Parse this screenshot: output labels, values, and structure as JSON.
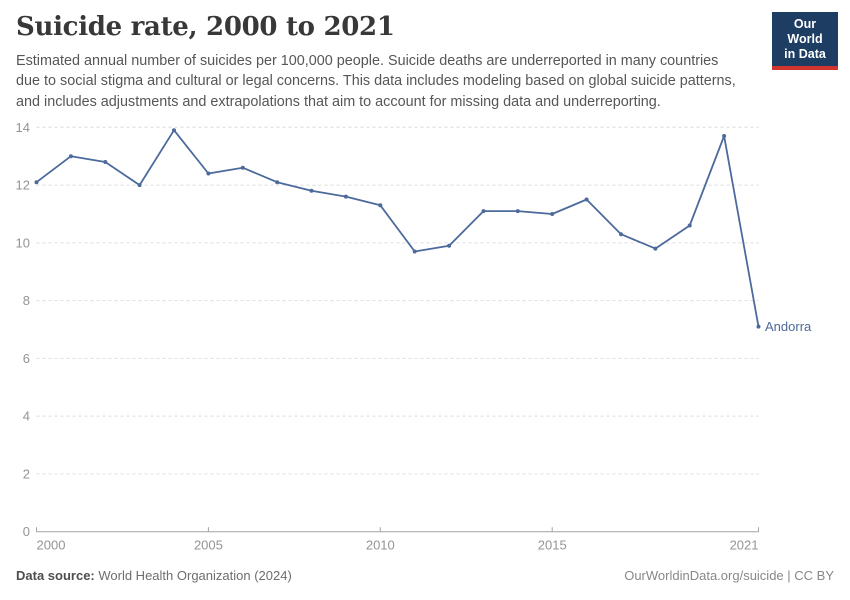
{
  "header": {
    "title": "Suicide rate, 2000 to 2021",
    "subtitle": "Estimated annual number of suicides per 100,000 people. Suicide deaths are underreported in many countries due to social stigma and cultural or legal concerns. This data includes modeling based on global suicide patterns, and includes adjustments and extrapolations that aim to account for missing data and underreporting.",
    "logo": {
      "line1": "Our World",
      "line2": "in Data",
      "bg_color": "#1d3d63",
      "stripe_color": "#d0342c"
    }
  },
  "chart_data": {
    "type": "line",
    "title": "Suicide rate, 2000 to 2021",
    "xlabel": "",
    "ylabel": "Estimated annual suicides per 100,000 people",
    "x": [
      2000,
      2001,
      2002,
      2003,
      2004,
      2005,
      2006,
      2007,
      2008,
      2009,
      2010,
      2011,
      2012,
      2013,
      2014,
      2015,
      2016,
      2017,
      2018,
      2019,
      2020,
      2021
    ],
    "series": [
      {
        "name": "Andorra",
        "color": "#4C6A9C",
        "values": [
          12.1,
          13.0,
          12.8,
          12.0,
          13.9,
          12.4,
          12.6,
          12.1,
          11.8,
          11.6,
          11.3,
          9.7,
          9.9,
          11.1,
          11.1,
          11.0,
          11.5,
          10.3,
          9.8,
          10.6,
          13.7,
          7.1
        ]
      }
    ],
    "x_ticks": [
      2000,
      2005,
      2010,
      2015,
      2021
    ],
    "y_ticks": [
      0,
      2,
      4,
      6,
      8,
      10,
      12,
      14
    ],
    "xlim": [
      2000,
      2021
    ],
    "ylim": [
      0,
      14
    ],
    "grid": "horizontal-dashed",
    "legend_position": "end-of-line-label",
    "marker": "dot"
  },
  "footer": {
    "source_label": "Data source:",
    "source_value": " World Health Organization (2024)",
    "credit": "OurWorldinData.org/suicide | CC BY"
  }
}
